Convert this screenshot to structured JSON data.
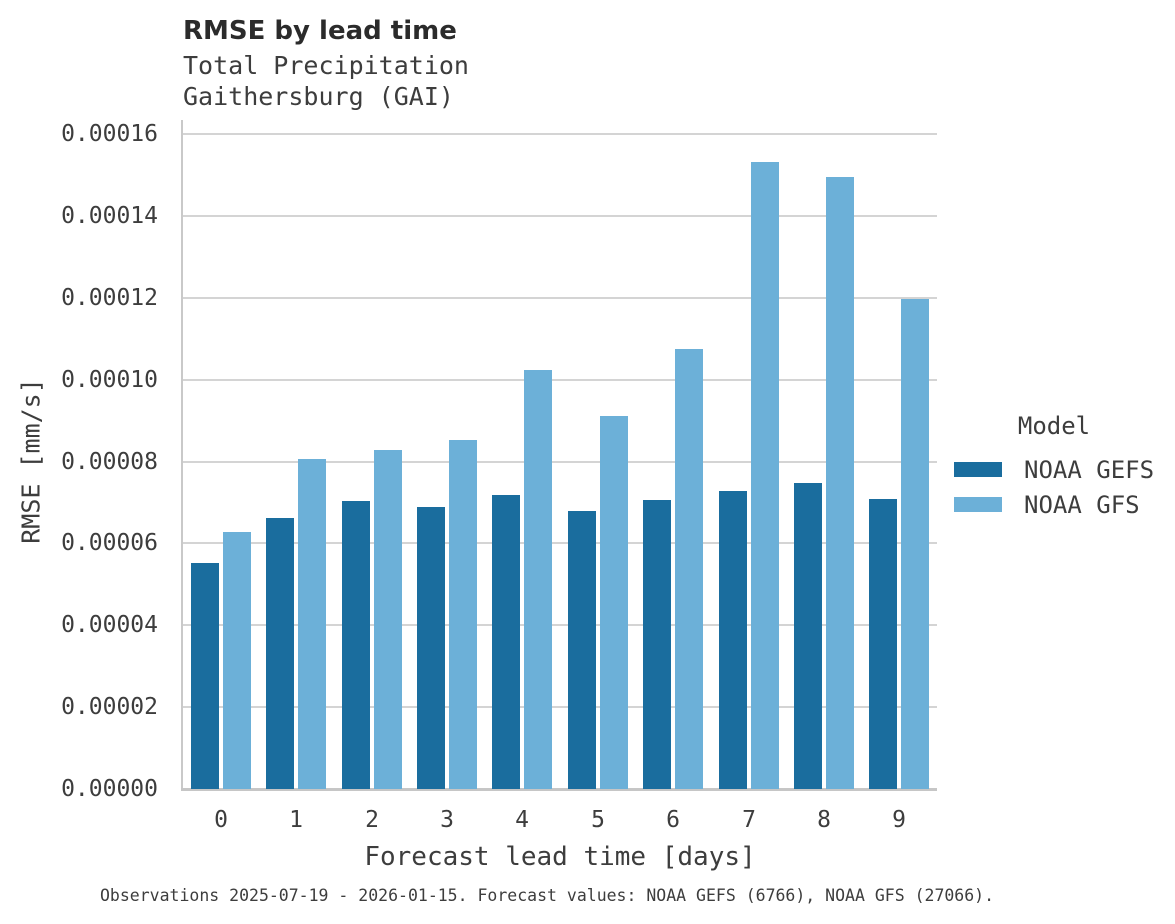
{
  "header": {
    "title": "RMSE by lead time",
    "subtitle_line1": "Total Precipitation",
    "subtitle_line2": "Gaithersburg (GAI)"
  },
  "legend": {
    "title": "Model",
    "entries": [
      {
        "label": "NOAA GEFS",
        "color": "#1a6d9e"
      },
      {
        "label": "NOAA GFS",
        "color": "#6cb0d8"
      }
    ]
  },
  "footer": {
    "text": "Observations 2025-07-19 - 2026-01-15. Forecast values: NOAA GEFS (6766), NOAA GFS (27066)."
  },
  "chart_data": {
    "type": "bar",
    "title": "RMSE by lead time",
    "subtitle": [
      "Total Precipitation",
      "Gaithersburg (GAI)"
    ],
    "xlabel": "Forecast lead time [days]",
    "ylabel": "RMSE [mm/s]",
    "categories": [
      0,
      1,
      2,
      3,
      4,
      5,
      6,
      7,
      8,
      9
    ],
    "series": [
      {
        "name": "NOAA GEFS",
        "color": "#1a6d9e",
        "values": [
          5.53e-05,
          6.63e-05,
          7.04e-05,
          6.9e-05,
          7.18e-05,
          6.78e-05,
          7.07e-05,
          7.27e-05,
          7.47e-05,
          7.09e-05
        ]
      },
      {
        "name": "NOAA GFS",
        "color": "#6cb0d8",
        "values": [
          6.27e-05,
          8.07e-05,
          8.29e-05,
          8.52e-05,
          0.0001023,
          9.1e-05,
          0.0001075,
          0.0001531,
          0.0001495,
          0.0001196
        ]
      }
    ],
    "ylim": [
      0,
      0.00016
    ],
    "yticks": [
      {
        "value": 0.0,
        "label": "0.00000"
      },
      {
        "value": 2e-05,
        "label": "0.00002"
      },
      {
        "value": 4e-05,
        "label": "0.00004"
      },
      {
        "value": 6e-05,
        "label": "0.00006"
      },
      {
        "value": 8e-05,
        "label": "0.00008"
      },
      {
        "value": 0.0001,
        "label": "0.00010"
      },
      {
        "value": 0.00012,
        "label": "0.00012"
      },
      {
        "value": 0.00014,
        "label": "0.00014"
      },
      {
        "value": 0.00016,
        "label": "0.00016"
      }
    ],
    "grid": true,
    "legend_position": "right",
    "legend_title": "Model"
  }
}
